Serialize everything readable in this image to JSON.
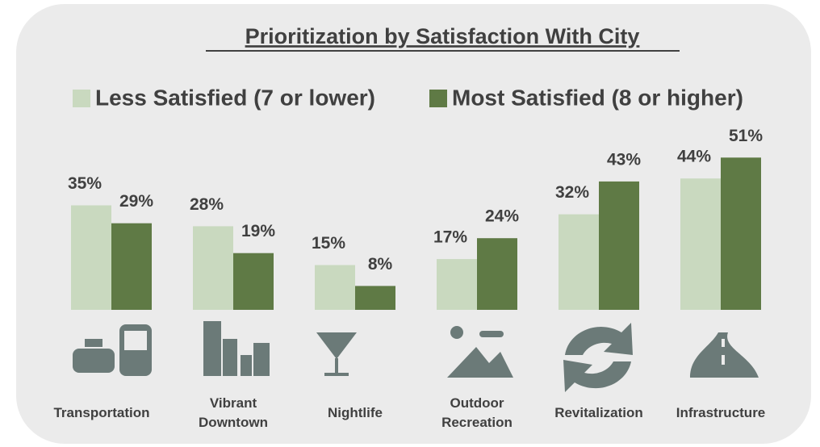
{
  "chart_data": {
    "type": "bar",
    "title": "Prioritization by Satisfaction With City",
    "categories": [
      "Transportation",
      "Vibrant Downtown",
      "Nightlife",
      "Outdoor Recreation",
      "Revitalization",
      "Infrastructure"
    ],
    "series": [
      {
        "name": "Less Satisfied (7 or lower)",
        "color": "#c9d9bf",
        "values": [
          35,
          28,
          15,
          17,
          32,
          44
        ],
        "value_labels": [
          "35%",
          "28%",
          "15%",
          "17%",
          "32%",
          "44%"
        ]
      },
      {
        "name": "Most Satisfied (8 or higher)",
        "color": "#5f7a45",
        "values": [
          29,
          19,
          8,
          24,
          43,
          51
        ],
        "value_labels": [
          "29%",
          "19%",
          "8%",
          "24%",
          "43%",
          "51%"
        ]
      }
    ]
  }
}
